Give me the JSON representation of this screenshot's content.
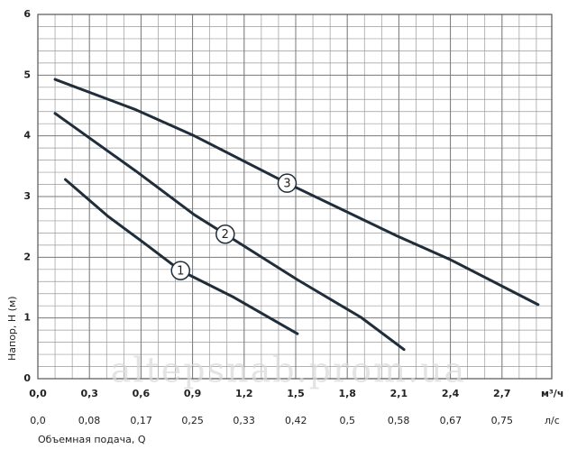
{
  "chart_data": {
    "type": "line",
    "xlabel": "Объемная подача, Q",
    "ylabel": "Напор, H (м)",
    "xunit": "м³/ч",
    "x2unit": "л/с",
    "watermark": "altepsnab.prom.ua",
    "xlim": [
      0,
      3.0
    ],
    "ylim": [
      0,
      6
    ],
    "x2lim": [
      0,
      0.8333
    ],
    "xticks": [
      {
        "value": 0,
        "label": "0,0"
      },
      {
        "value": 0.3,
        "label": "0,3"
      },
      {
        "value": 0.6,
        "label": "0,6"
      },
      {
        "value": 0.9,
        "label": "0,9"
      },
      {
        "value": 1.2,
        "label": "1,2"
      },
      {
        "value": 1.5,
        "label": "1,5"
      },
      {
        "value": 1.8,
        "label": "1,8"
      },
      {
        "value": 2.1,
        "label": "2,1"
      },
      {
        "value": 2.4,
        "label": "2,4"
      },
      {
        "value": 2.7,
        "label": "2,7"
      }
    ],
    "x2ticks": [
      {
        "value": 0,
        "label": "0,0"
      },
      {
        "value": 0.083,
        "label": "0,08"
      },
      {
        "value": 0.167,
        "label": "0,17"
      },
      {
        "value": 0.25,
        "label": "0,25"
      },
      {
        "value": 0.333,
        "label": "0,33"
      },
      {
        "value": 0.417,
        "label": "0,42"
      },
      {
        "value": 0.5,
        "label": "0,5"
      },
      {
        "value": 0.583,
        "label": "0,58"
      },
      {
        "value": 0.667,
        "label": "0,67"
      },
      {
        "value": 0.75,
        "label": "0,75"
      }
    ],
    "yticks": [
      0,
      1,
      2,
      3,
      4,
      5,
      6
    ],
    "grid": true,
    "minor_grid": {
      "x": 0.1,
      "y": 0.2
    },
    "series": [
      {
        "name": "1",
        "color": "#1f2e3a",
        "x": [
          0.16,
          0.41,
          0.62,
          0.83,
          1.14,
          1.51
        ],
        "values": [
          3.28,
          2.67,
          2.23,
          1.78,
          1.34,
          0.74
        ]
      },
      {
        "name": "2",
        "color": "#1f2e3a",
        "x": [
          0.1,
          0.57,
          0.91,
          1.09,
          1.51,
          1.88,
          2.13
        ],
        "values": [
          4.37,
          3.42,
          2.7,
          2.38,
          1.63,
          1.01,
          0.48
        ]
      },
      {
        "name": "3",
        "color": "#1f2e3a",
        "x": [
          0.1,
          0.57,
          0.91,
          1.45,
          2.09,
          2.4,
          2.91
        ],
        "values": [
          4.93,
          4.43,
          4.0,
          3.22,
          2.35,
          1.96,
          1.22
        ]
      }
    ]
  }
}
